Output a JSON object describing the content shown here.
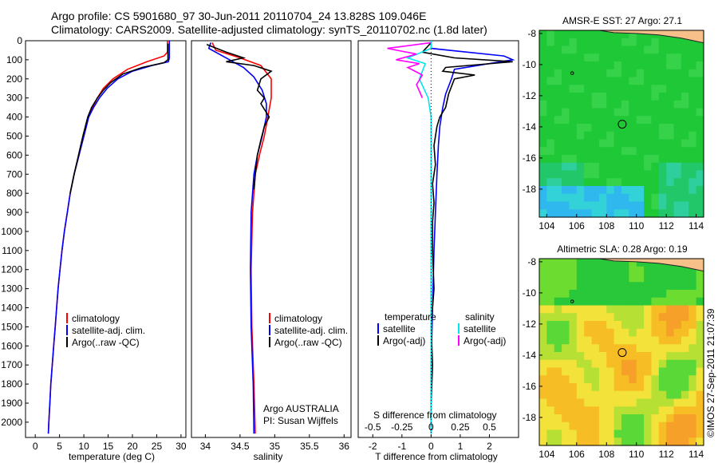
{
  "header": {
    "line1": "Argo profile: CS 5901680_97 30-Jun-2011 20110704_24 13.828S 109.046E",
    "line2": "Climatology: CARS2009. Satellite-adjusted climatology: synTS_20110702.nc (1.8d later)"
  },
  "colors": {
    "climatology": "#ff0000",
    "satellite": "#0000ff",
    "argo": "#000000",
    "sal_satellite": "#00e5ee",
    "sal_argo": "#ff00ff"
  },
  "chart_data": [
    {
      "type": "line",
      "id": "temperature",
      "xlabel": "temperature (deg C)",
      "ylabel": "",
      "xlim": [
        -2,
        31
      ],
      "ylim": [
        2080,
        0
      ],
      "xticks": [
        0,
        5,
        10,
        15,
        20,
        25,
        30
      ],
      "yticks": [
        0,
        100,
        200,
        300,
        400,
        500,
        600,
        700,
        800,
        900,
        1000,
        1100,
        1200,
        1300,
        1400,
        1500,
        1600,
        1700,
        1800,
        1900,
        2000
      ],
      "legend": [
        "climatology",
        "satellite-adj. clim.",
        "Argo(..raw -QC)"
      ],
      "series": [
        {
          "name": "climatology",
          "color": "#ff0000",
          "points": [
            [
              27.2,
              0
            ],
            [
              27.2,
              60
            ],
            [
              26.5,
              80
            ],
            [
              23,
              110
            ],
            [
              19,
              150
            ],
            [
              16,
              200
            ],
            [
              14,
              250
            ],
            [
              12.8,
              300
            ],
            [
              11.8,
              350
            ],
            [
              11,
              400
            ],
            [
              10,
              500
            ],
            [
              9,
              600
            ],
            [
              8,
              700
            ],
            [
              7.2,
              800
            ],
            [
              6.6,
              900
            ],
            [
              6,
              1000
            ],
            [
              5.5,
              1100
            ],
            [
              5.1,
              1200
            ],
            [
              4.7,
              1300
            ],
            [
              4.4,
              1400
            ],
            [
              4.1,
              1500
            ],
            [
              3.8,
              1600
            ],
            [
              3.5,
              1700
            ],
            [
              3.2,
              1800
            ],
            [
              3,
              1900
            ],
            [
              2.8,
              2000
            ],
            [
              2.7,
              2060
            ]
          ]
        },
        {
          "name": "satellite-adj. clim.",
          "color": "#0000ff",
          "points": [
            [
              27.6,
              0
            ],
            [
              27.6,
              50
            ],
            [
              27.6,
              90
            ],
            [
              27.4,
              110
            ],
            [
              24,
              130
            ],
            [
              20,
              160
            ],
            [
              17,
              200
            ],
            [
              14.8,
              250
            ],
            [
              13.2,
              300
            ],
            [
              12,
              350
            ],
            [
              11,
              400
            ],
            [
              10,
              500
            ],
            [
              9,
              600
            ],
            [
              8,
              700
            ],
            [
              7.2,
              800
            ],
            [
              6.6,
              900
            ],
            [
              6,
              1000
            ],
            [
              5.5,
              1100
            ],
            [
              5.1,
              1200
            ],
            [
              4.7,
              1300
            ],
            [
              4.4,
              1400
            ],
            [
              4.1,
              1500
            ],
            [
              3.8,
              1600
            ],
            [
              3.5,
              1700
            ],
            [
              3.2,
              1800
            ],
            [
              3,
              1900
            ],
            [
              2.8,
              2000
            ],
            [
              2.7,
              2060
            ]
          ]
        },
        {
          "name": "Argo(..raw -QC)",
          "color": "#000000",
          "points": [
            [
              27.3,
              15
            ],
            [
              27.3,
              100
            ],
            [
              26.5,
              115
            ],
            [
              22,
              140
            ],
            [
              18,
              175
            ],
            [
              15.5,
              220
            ],
            [
              14,
              260
            ],
            [
              12.8,
              300
            ],
            [
              11.6,
              350
            ],
            [
              10.8,
              400
            ],
            [
              9.8,
              500
            ],
            [
              8.9,
              600
            ],
            [
              8,
              700
            ],
            [
              7.2,
              800
            ]
          ]
        }
      ]
    },
    {
      "type": "line",
      "id": "salinity",
      "xlabel": "salinity",
      "xlim": [
        33.8,
        36.1
      ],
      "ylim": [
        2080,
        0
      ],
      "xticks": [
        34,
        34.5,
        35,
        35.5,
        36
      ],
      "legend": [
        "climatology",
        "satellite-adj. clim.",
        "Argo(..raw -QC)"
      ],
      "annotation1": "Argo AUSTRALIA",
      "annotation2": "PI: Susan Wijffels",
      "series": [
        {
          "name": "climatology",
          "color": "#ff0000",
          "points": [
            [
              34.1,
              10
            ],
            [
              34.15,
              50
            ],
            [
              34.5,
              90
            ],
            [
              34.8,
              130
            ],
            [
              34.95,
              200
            ],
            [
              34.95,
              300
            ],
            [
              34.9,
              400
            ],
            [
              34.85,
              500
            ],
            [
              34.78,
              600
            ],
            [
              34.72,
              700
            ],
            [
              34.68,
              900
            ],
            [
              34.66,
              1200
            ],
            [
              34.67,
              1500
            ],
            [
              34.7,
              1800
            ],
            [
              34.72,
              2060
            ]
          ]
        },
        {
          "name": "satellite-adj. clim.",
          "color": "#0000ff",
          "points": [
            [
              34.08,
              10
            ],
            [
              34.05,
              40
            ],
            [
              34.35,
              100
            ],
            [
              34.55,
              140
            ],
            [
              34.7,
              190
            ],
            [
              34.82,
              260
            ],
            [
              34.88,
              330
            ],
            [
              34.88,
              400
            ],
            [
              34.82,
              500
            ],
            [
              34.75,
              600
            ],
            [
              34.7,
              700
            ],
            [
              34.66,
              900
            ],
            [
              34.65,
              1200
            ],
            [
              34.66,
              1500
            ],
            [
              34.69,
              1800
            ],
            [
              34.7,
              2060
            ]
          ]
        },
        {
          "name": "Argo(..raw -QC)",
          "color": "#000000",
          "points": [
            [
              34.02,
              20
            ],
            [
              34.3,
              60
            ],
            [
              34.55,
              90
            ],
            [
              34.3,
              110
            ],
            [
              34.7,
              130
            ],
            [
              34.95,
              160
            ],
            [
              34.8,
              200
            ],
            [
              34.75,
              260
            ],
            [
              34.85,
              300
            ],
            [
              34.8,
              330
            ],
            [
              34.92,
              400
            ],
            [
              34.85,
              450
            ],
            [
              34.8,
              520
            ],
            [
              34.75,
              600
            ],
            [
              34.72,
              700
            ],
            [
              34.7,
              780
            ]
          ]
        }
      ]
    },
    {
      "type": "line",
      "id": "difference",
      "xlabel": "T difference from climatology",
      "x2label": "S difference from climatology",
      "xlim": [
        -2.5,
        3
      ],
      "ylim": [
        2080,
        0
      ],
      "xticks": [
        -2,
        -1,
        0,
        1,
        2
      ],
      "x2ticks": [
        "-0.5",
        "-0.25",
        "0",
        "0.25",
        "0.5"
      ],
      "legend_temperature_title": "temperature",
      "legend_salinity_title": "salinity",
      "legend_satellite": "satellite",
      "legend_argo": "Argo(-adj)",
      "series": [
        {
          "name": "temperature satellite",
          "color": "#0000ff",
          "points": [
            [
              0,
              0
            ],
            [
              0,
              40
            ],
            [
              2.5,
              80
            ],
            [
              2.8,
              100
            ],
            [
              0.8,
              150
            ],
            [
              0.7,
              200
            ],
            [
              0.5,
              280
            ],
            [
              0.4,
              350
            ],
            [
              0.3,
              450
            ],
            [
              0.25,
              550
            ],
            [
              0.2,
              700
            ],
            [
              0.15,
              900
            ],
            [
              0.1,
              1100
            ],
            [
              0.05,
              1400
            ],
            [
              0,
              1700
            ],
            [
              0,
              2060
            ]
          ]
        },
        {
          "name": "temperature Argo",
          "color": "#000000",
          "points": [
            [
              0,
              10
            ],
            [
              -0.3,
              60
            ],
            [
              0.8,
              90
            ],
            [
              2.8,
              110
            ],
            [
              0.5,
              140
            ],
            [
              0.4,
              160
            ],
            [
              1.5,
              180
            ],
            [
              0.8,
              200
            ],
            [
              0.6,
              280
            ],
            [
              0.5,
              350
            ],
            [
              0.3,
              400
            ],
            [
              0.2,
              450
            ],
            [
              0.1,
              550
            ],
            [
              0.15,
              650
            ],
            [
              0.05,
              750
            ],
            [
              0.1,
              850
            ],
            [
              0.05,
              950
            ],
            [
              0.05,
              1100
            ],
            [
              0.1,
              1300
            ],
            [
              0.0,
              1500
            ],
            [
              0.05,
              1700
            ],
            [
              0,
              1900
            ]
          ]
        },
        {
          "name": "salinity satellite",
          "color": "#00e5ee",
          "points": [
            [
              0,
              0
            ],
            [
              0,
              40
            ],
            [
              -0.8,
              90
            ],
            [
              -0.2,
              120
            ],
            [
              -0.4,
              200
            ],
            [
              -0.1,
              300
            ],
            [
              0,
              400
            ],
            [
              0,
              700
            ],
            [
              0,
              1000
            ],
            [
              0,
              1400
            ],
            [
              0,
              1800
            ],
            [
              0,
              2060
            ]
          ]
        },
        {
          "name": "salinity Argo",
          "color": "#ff00ff",
          "points": [
            [
              0,
              10
            ],
            [
              -1.5,
              40
            ],
            [
              -0.5,
              70
            ],
            [
              -1.2,
              100
            ],
            [
              -0.4,
              120
            ],
            [
              -0.8,
              140
            ],
            [
              -0.3,
              180
            ],
            [
              -0.5,
              230
            ],
            [
              -0.3,
              300
            ]
          ]
        }
      ]
    },
    {
      "type": "heatmap",
      "id": "sst_map",
      "title": "AMSR-E SST: 27  Argo: 27.1",
      "xlim": [
        103.5,
        114.5
      ],
      "ylim": [
        -19.8,
        -7.8
      ],
      "xticks": [
        104,
        106,
        108,
        110,
        112,
        114
      ],
      "yticks": [
        -8,
        -10,
        -12,
        -14,
        -16,
        -18
      ],
      "float_position": [
        109.05,
        -13.83
      ]
    },
    {
      "type": "heatmap",
      "id": "sla_map",
      "title": "Altimetric SLA: 0.28  Argo: 0.19",
      "xlim": [
        103.5,
        114.5
      ],
      "ylim": [
        -19.8,
        -7.8
      ],
      "xticks": [
        104,
        106,
        108,
        110,
        112,
        114
      ],
      "yticks": [
        -8,
        -10,
        -12,
        -14,
        -16,
        -18
      ],
      "float_position": [
        109.05,
        -13.83
      ]
    }
  ],
  "footer_stamp": "©IMOS 27-Sep-2011 21:07:39"
}
